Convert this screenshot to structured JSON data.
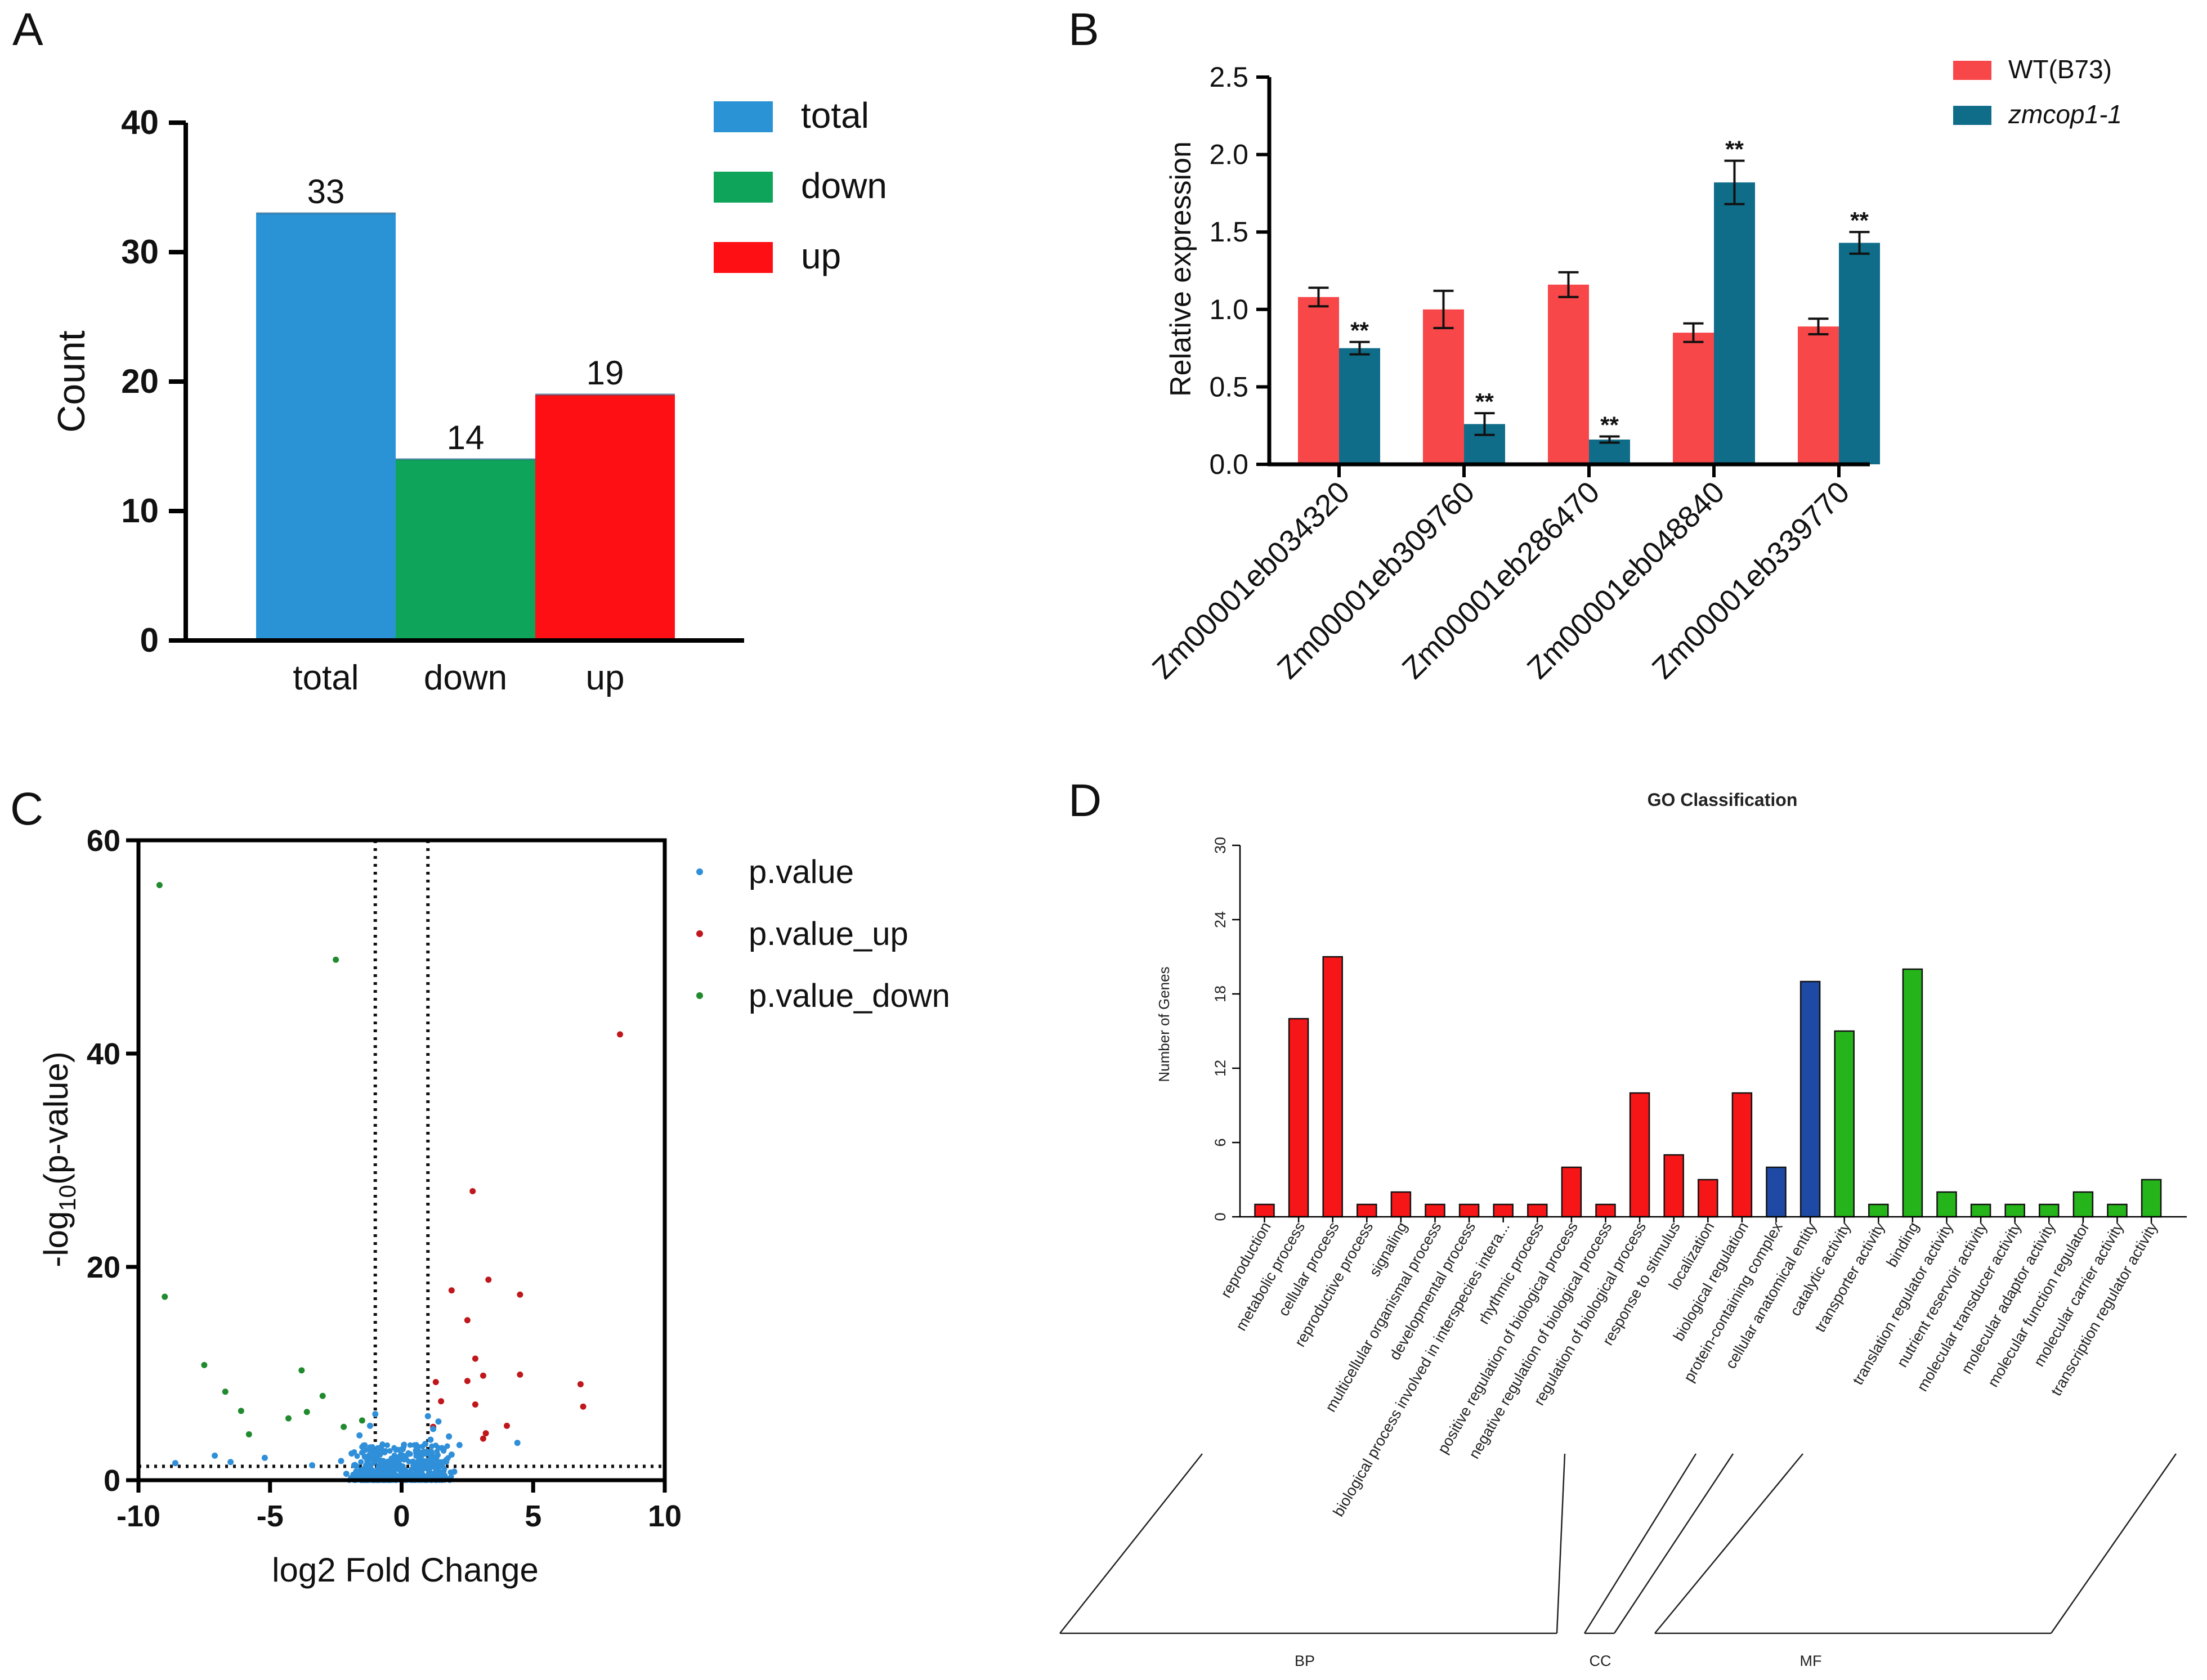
{
  "panels": {
    "A": {
      "letter": "A"
    },
    "B": {
      "letter": "B"
    },
    "C": {
      "letter": "C"
    },
    "D": {
      "letter": "D"
    }
  },
  "colors": {
    "total": "#2a93d5",
    "down": "#0ea55a",
    "up": "#fd0f14",
    "wt": "#f84749",
    "mutant": "#0f6d8a",
    "pvalue": "#2f8fd8",
    "pup": "#c0171c",
    "pdown": "#208a2e",
    "bp": "#f61517",
    "cc": "#1e4aa5",
    "mf": "#25b41a"
  },
  "chart_data": [
    {
      "panel": "A",
      "type": "bar",
      "title": "",
      "xlabel": "",
      "ylabel": "Count",
      "ylim": [
        0,
        40
      ],
      "yticks": [
        "0",
        "10",
        "20",
        "30",
        "40"
      ],
      "categories": [
        "total",
        "down",
        "up"
      ],
      "values": [
        33,
        14,
        19
      ],
      "value_labels": [
        "33",
        "14",
        "19"
      ],
      "legend": [
        "total",
        "down",
        "up"
      ],
      "legend_position": "top-right"
    },
    {
      "panel": "B",
      "type": "bar",
      "title": "",
      "xlabel": "",
      "ylabel": "Relative expression",
      "ylim": [
        0,
        2.5
      ],
      "yticks": [
        "0.0",
        "0.5",
        "1.0",
        "1.5",
        "2.0",
        "2.5"
      ],
      "categories": [
        "Zm00001eb034320",
        "Zm00001eb309760",
        "Zm00001eb286470",
        "Zm00001eb048840",
        "Zm00001eb339770"
      ],
      "series": [
        {
          "name": "WT(B73)",
          "values": [
            1.08,
            1.0,
            1.16,
            0.85,
            0.89
          ],
          "errors": [
            0.06,
            0.12,
            0.08,
            0.06,
            0.05
          ],
          "sig": [
            "",
            "",
            "",
            "",
            ""
          ]
        },
        {
          "name": "zmcop1-1",
          "values": [
            0.75,
            0.26,
            0.16,
            1.82,
            1.43
          ],
          "errors": [
            0.04,
            0.07,
            0.02,
            0.14,
            0.07
          ],
          "sig": [
            "**",
            "**",
            "**",
            "**",
            "**"
          ]
        }
      ],
      "legend_position": "top-right"
    },
    {
      "panel": "C",
      "type": "scatter",
      "title": "",
      "xlabel": "log2 Fold Change",
      "ylabel_main": "-log",
      "ylabel_sub": "10",
      "ylabel_tail": "(p-value)",
      "xlim": [
        -10,
        10
      ],
      "ylim": [
        0,
        60
      ],
      "xticks": [
        "-10",
        "-5",
        "0",
        "5",
        "10"
      ],
      "yticks": [
        "0",
        "20",
        "40",
        "60"
      ],
      "thresholds": {
        "x": [
          -1,
          1
        ],
        "y": 1.3
      },
      "legend": [
        "p.value",
        "p.value_up",
        "p.value_down"
      ],
      "legend_position": "top-right",
      "series": [
        {
          "name": "p.value_down",
          "x": [
            -9.2,
            -9.0,
            -2.5,
            -7.5,
            -6.7,
            -6.1,
            -3.8,
            -3.0,
            -5.8,
            -4.3,
            -3.6,
            -2.2,
            -1.5
          ],
          "y": [
            55.8,
            17.2,
            48.8,
            10.8,
            8.3,
            6.5,
            10.3,
            7.9,
            4.3,
            5.8,
            6.4,
            5.0,
            5.6
          ]
        },
        {
          "name": "p.value_up",
          "x": [
            8.3,
            2.7,
            2.5,
            3.3,
            4.5,
            1.9,
            2.5,
            2.8,
            3.1,
            6.8,
            6.9,
            4.5,
            1.3,
            2.8,
            4.0,
            1.5,
            1.2,
            3.1,
            3.2
          ],
          "y": [
            41.8,
            27.1,
            15.0,
            18.8,
            17.4,
            17.8,
            9.3,
            11.4,
            9.8,
            9.0,
            6.9,
            9.9,
            9.2,
            7.1,
            5.1,
            7.4,
            5.0,
            3.9,
            4.4
          ]
        },
        {
          "name": "p.value",
          "x": [
            -8.6,
            -7.1,
            -6.5,
            -5.2,
            -3.4,
            -2.3,
            1.8,
            2.2,
            4.4,
            -1.9,
            -1.6,
            -1.2,
            -0.9,
            -0.7,
            -0.5,
            -0.3,
            0.3,
            0.5,
            0.7,
            0.9,
            1.2,
            1.4,
            1.6,
            -1.8,
            -1.4,
            -1.1,
            -0.8,
            0.6,
            0.9,
            1.1,
            1.3,
            1.7,
            2.0,
            -2.1,
            -1.5,
            1.5,
            1.9,
            -1.0,
            -0.6,
            0.8,
            1.0
          ],
          "y": [
            1.6,
            2.3,
            1.7,
            2.1,
            1.4,
            1.8,
            4.1,
            3.3,
            3.5,
            2.5,
            4.2,
            5.1,
            3.0,
            1.8,
            1.2,
            0.8,
            0.7,
            1.1,
            2.0,
            3.4,
            4.8,
            5.5,
            2.9,
            1.4,
            2.2,
            0.9,
            1.5,
            1.6,
            2.6,
            3.8,
            1.2,
            1.9,
            0.8,
            0.6,
            0.5,
            0.6,
            2.4,
            6.2,
            0.4,
            0.5,
            6.0
          ]
        }
      ]
    },
    {
      "panel": "D",
      "type": "bar",
      "title": "GO Classification",
      "xlabel": "",
      "ylabel": "Number of Genes",
      "ylim": [
        0,
        30
      ],
      "yticks": [
        "0",
        "6",
        "12",
        "18",
        "24",
        "30"
      ],
      "categories": [
        "reproduction",
        "metabolic process",
        "cellular process",
        "reproductive process",
        "signaling",
        "multicellular organismal process",
        "developmental process",
        "biological process involved in interspecies intera...",
        "rhythmic process",
        "positive regulation of biological process",
        "negative regulation of biological process",
        "regulation of biological process",
        "response to stimulus",
        "localization",
        "biological regulation",
        "protein-containing complex",
        "cellular anatomical entity",
        "catalytic activity",
        "transporter activity",
        "binding",
        "translation regulator activity",
        "nutrient reservoir activity",
        "molecular transducer activity",
        "molecular adaptor activity",
        "molecular function regulator",
        "molecular carrier activity",
        "transcription regulator activity"
      ],
      "values": [
        1,
        16,
        21,
        1,
        2,
        1,
        1,
        1,
        1,
        4,
        1,
        10,
        5,
        3,
        10,
        4,
        19,
        15,
        1,
        20,
        2,
        1,
        1,
        1,
        2,
        1,
        3
      ],
      "groups": [
        "BP",
        "BP",
        "BP",
        "BP",
        "BP",
        "BP",
        "BP",
        "BP",
        "BP",
        "BP",
        "BP",
        "BP",
        "BP",
        "BP",
        "BP",
        "CC",
        "CC",
        "MF",
        "MF",
        "MF",
        "MF",
        "MF",
        "MF",
        "MF",
        "MF",
        "MF",
        "MF"
      ],
      "group_labels": [
        "BP",
        "CC",
        "MF"
      ]
    }
  ]
}
